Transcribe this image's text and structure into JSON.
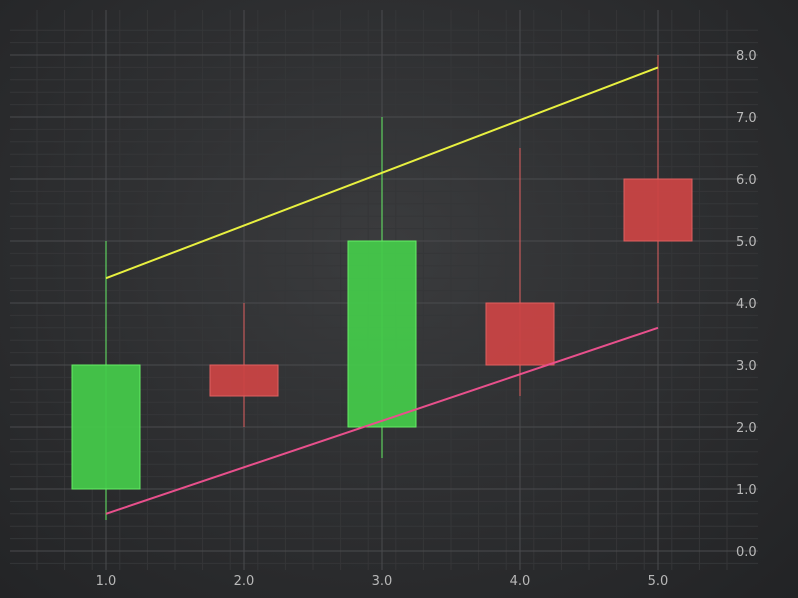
{
  "chart_data": {
    "type": "candlestick",
    "x_ticks": [
      "1.0",
      "2.0",
      "3.0",
      "4.0",
      "5.0"
    ],
    "y_ticks": [
      "0.0",
      "1.0",
      "2.0",
      "3.0",
      "4.0",
      "5.0",
      "6.0",
      "7.0",
      "8.0"
    ],
    "xlim": [
      0.5,
      5.5
    ],
    "ylim": [
      0,
      8
    ],
    "y_axis_position": "right",
    "grid": true,
    "candles": [
      {
        "x": 1,
        "open": 1.0,
        "high": 5.0,
        "low": 0.5,
        "close": 3.0
      },
      {
        "x": 2,
        "open": 3.0,
        "high": 4.0,
        "low": 2.0,
        "close": 2.5
      },
      {
        "x": 3,
        "open": 2.0,
        "high": 7.0,
        "low": 1.5,
        "close": 5.0
      },
      {
        "x": 4,
        "open": 4.0,
        "high": 6.5,
        "low": 2.5,
        "close": 3.0
      },
      {
        "x": 5,
        "open": 6.0,
        "high": 8.0,
        "low": 4.0,
        "close": 5.0
      }
    ],
    "trend_lines": [
      {
        "color": "#e8f040",
        "points": [
          [
            1,
            4.4
          ],
          [
            5,
            7.8
          ]
        ]
      },
      {
        "color": "#e8508c",
        "points": [
          [
            1,
            0.6
          ],
          [
            5,
            3.6
          ]
        ]
      }
    ],
    "colors": {
      "up_fill": "#45c84a",
      "up_stroke": "#66ee66",
      "down_fill": "#c94545",
      "down_stroke": "#e06060",
      "major_grid": "#4a4b4e",
      "minor_grid": "#353638"
    }
  }
}
